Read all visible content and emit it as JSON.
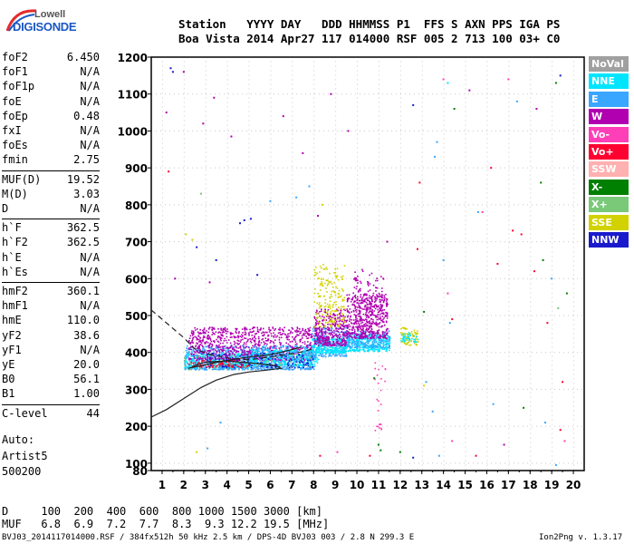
{
  "logo": {
    "line1": "Lowell",
    "line2": "DIGISONDE"
  },
  "header": {
    "labels_line": "Station   YYYY DAY   DDD HHMMSS P1  FFS S AXN PPS IGA PS",
    "values_line": "Boa Vista 2014 Apr27 117 014000 RSF 005 2 713 100 03+ C0"
  },
  "params_group1": [
    {
      "name": "foF2",
      "value": "6.450"
    },
    {
      "name": "foF1",
      "value": "N/A"
    },
    {
      "name": "foF1p",
      "value": "N/A"
    },
    {
      "name": "foE",
      "value": "N/A"
    },
    {
      "name": "foEp",
      "value": "0.48"
    },
    {
      "name": "fxI",
      "value": "N/A"
    },
    {
      "name": "foEs",
      "value": "N/A"
    },
    {
      "name": "fmin",
      "value": "2.75"
    }
  ],
  "params_group2": [
    {
      "name": "MUF(D)",
      "value": "19.52"
    },
    {
      "name": "M(D)",
      "value": "3.03"
    },
    {
      "name": "D",
      "value": "N/A"
    }
  ],
  "params_group3": [
    {
      "name": "h`F",
      "value": "362.5"
    },
    {
      "name": "h`F2",
      "value": "362.5"
    },
    {
      "name": "h`E",
      "value": "N/A"
    },
    {
      "name": "h`Es",
      "value": "N/A"
    }
  ],
  "params_group4": [
    {
      "name": "hmF2",
      "value": "360.1"
    },
    {
      "name": "hmF1",
      "value": "N/A"
    },
    {
      "name": "hmE",
      "value": "110.0"
    },
    {
      "name": "yF2",
      "value": "38.6"
    },
    {
      "name": "yF1",
      "value": "N/A"
    },
    {
      "name": "yE",
      "value": "20.0"
    },
    {
      "name": "B0",
      "value": "56.1"
    },
    {
      "name": "B1",
      "value": "1.00"
    }
  ],
  "params_group5": [
    {
      "name": "C-level",
      "value": "44"
    }
  ],
  "autoscale": {
    "line1": "Auto:",
    "line2": "Artist5",
    "line3": "500200"
  },
  "legend": [
    {
      "label": "NoVal",
      "color": "#a0a0a0"
    },
    {
      "label": "NNE",
      "color": "#00e5ff"
    },
    {
      "label": "E",
      "color": "#3aa6ff"
    },
    {
      "label": "W",
      "color": "#b000b0"
    },
    {
      "label": "Vo-",
      "color": "#ff3fb8"
    },
    {
      "label": "Vo+",
      "color": "#ff0030"
    },
    {
      "label": "SSW",
      "color": "#ffb0b0"
    },
    {
      "label": "X-",
      "color": "#008000"
    },
    {
      "label": "X+",
      "color": "#79c979"
    },
    {
      "label": "SSE",
      "color": "#d2d200"
    },
    {
      "label": "NNW",
      "color": "#1a1acc"
    }
  ],
  "muf_table": {
    "d_line": "D     100  200  400  600  800 1000 1500 3000 [km]",
    "muf_line": "MUF   6.8  6.9  7.2  7.7  8.3  9.3 12.2 19.5 [MHz]"
  },
  "footer": {
    "left": "BVJ03_2014117014000.RSF / 384fx512h 50 kHz 2.5 km / DPS-4D BVJ03 003 / 2.8 N 299.3 E",
    "right": "Ion2Png v. 1.3.17"
  },
  "chart_data": {
    "type": "scatter",
    "xlim": [
      0.5,
      20.5
    ],
    "ylim": [
      80,
      1200
    ],
    "xticks": [
      1,
      2,
      3,
      4,
      5,
      6,
      7,
      8,
      9,
      10,
      11,
      12,
      13,
      14,
      15,
      16,
      17,
      18,
      19,
      20
    ],
    "yticks": [
      80,
      100,
      200,
      300,
      400,
      500,
      600,
      700,
      800,
      900,
      1000,
      1100,
      1200
    ],
    "grid": true,
    "legend_position": "right",
    "traces": [
      {
        "name": "solid",
        "style": "solid",
        "x": [
          0.5,
          1.2,
          2.0,
          2.8,
          3.5,
          4.3,
          5.0,
          5.8,
          6.5,
          6.2,
          5.0,
          4.0,
          3.0,
          2.4
        ],
        "y": [
          225,
          245,
          275,
          305,
          325,
          340,
          347,
          352,
          357,
          365,
          372,
          377,
          374,
          362
        ]
      },
      {
        "name": "dashed",
        "style": "dashed",
        "x": [
          0.5,
          1.2,
          2.0,
          2.5,
          3.2,
          4.0,
          5.0,
          6.0,
          6.8,
          7.5,
          8.0
        ],
        "y": [
          515,
          480,
          440,
          410,
          395,
          385,
          380,
          388,
          395,
          402,
          410
        ]
      },
      {
        "name": "dark",
        "style": "solid",
        "x": [
          2.2,
          2.8,
          3.4,
          4.0,
          4.6,
          5.2,
          5.8,
          6.4,
          7.0,
          7.4
        ],
        "y": [
          357,
          364,
          372,
          378,
          384,
          389,
          392,
          399,
          408,
          414
        ]
      }
    ],
    "clusters": [
      {
        "x": [
          2.0,
          5.0
        ],
        "y": [
          355,
          420
        ],
        "color": "#3aa6ff",
        "n": 520
      },
      {
        "x": [
          2.0,
          5.0
        ],
        "y": [
          360,
          400
        ],
        "color": "#00e5ff",
        "n": 260
      },
      {
        "x": [
          2.2,
          8.0
        ],
        "y": [
          380,
          470
        ],
        "color": "#b000b0",
        "n": 900
      },
      {
        "x": [
          5.0,
          8.0
        ],
        "y": [
          355,
          420
        ],
        "color": "#3aa6ff",
        "n": 520
      },
      {
        "x": [
          5.0,
          8.2
        ],
        "y": [
          365,
          410
        ],
        "color": "#00e5ff",
        "n": 300
      },
      {
        "x": [
          3.0,
          8.0
        ],
        "y": [
          360,
          400
        ],
        "color": "#1a1acc",
        "n": 160
      },
      {
        "x": [
          7.9,
          9.5
        ],
        "y": [
          390,
          470
        ],
        "color": "#3aa6ff",
        "n": 300
      },
      {
        "x": [
          7.9,
          9.5
        ],
        "y": [
          400,
          440
        ],
        "color": "#00e5ff",
        "n": 240
      },
      {
        "x": [
          8.0,
          9.5
        ],
        "y": [
          420,
          520
        ],
        "color": "#b000b0",
        "n": 360
      },
      {
        "x": [
          8.0,
          9.4
        ],
        "y": [
          470,
          640
        ],
        "color": "#d2d200",
        "n": 190
      },
      {
        "x": [
          9.5,
          11.5
        ],
        "y": [
          405,
          450
        ],
        "color": "#00e5ff",
        "n": 330
      },
      {
        "x": [
          9.5,
          11.5
        ],
        "y": [
          415,
          460
        ],
        "color": "#3aa6ff",
        "n": 200
      },
      {
        "x": [
          9.5,
          11.4
        ],
        "y": [
          440,
          560
        ],
        "color": "#b000b0",
        "n": 480
      },
      {
        "x": [
          9.8,
          11.2
        ],
        "y": [
          470,
          630
        ],
        "color": "#b000b0",
        "n": 130
      },
      {
        "x": [
          12.0,
          12.8
        ],
        "y": [
          420,
          470
        ],
        "color": "#d2d200",
        "n": 80
      },
      {
        "x": [
          12.0,
          12.8
        ],
        "y": [
          430,
          455
        ],
        "color": "#00e5ff",
        "n": 40
      },
      {
        "x": [
          2.2,
          5.0
        ],
        "y": [
          362,
          380
        ],
        "color": "#ff0030",
        "n": 90
      },
      {
        "x": [
          2.0,
          8.0
        ],
        "y": [
          355,
          400
        ],
        "color": "#79c979",
        "n": 50
      },
      {
        "x": [
          10.8,
          11.3
        ],
        "y": [
          380,
          180
        ],
        "color": "#ff3fb8",
        "n": 25
      }
    ],
    "scattered_points": [
      {
        "x": 1.4,
        "y": 1170,
        "color": "#1a1acc"
      },
      {
        "x": 1.5,
        "y": 1160,
        "color": "#1a1acc"
      },
      {
        "x": 1.2,
        "y": 1050,
        "color": "#b000b0"
      },
      {
        "x": 2.0,
        "y": 1160,
        "color": "#b000b0"
      },
      {
        "x": 2.9,
        "y": 1020,
        "color": "#b000b0"
      },
      {
        "x": 3.4,
        "y": 1090,
        "color": "#b000b0"
      },
      {
        "x": 4.2,
        "y": 985,
        "color": "#b000b0"
      },
      {
        "x": 6.6,
        "y": 1040,
        "color": "#b000b0"
      },
      {
        "x": 7.5,
        "y": 940,
        "color": "#b000b0"
      },
      {
        "x": 8.8,
        "y": 1100,
        "color": "#b000b0"
      },
      {
        "x": 1.3,
        "y": 890,
        "color": "#ff0030"
      },
      {
        "x": 1.6,
        "y": 600,
        "color": "#b000b0"
      },
      {
        "x": 2.1,
        "y": 720,
        "color": "#d2d200"
      },
      {
        "x": 2.4,
        "y": 705,
        "color": "#d2d200"
      },
      {
        "x": 2.6,
        "y": 685,
        "color": "#1a1acc"
      },
      {
        "x": 2.8,
        "y": 830,
        "color": "#79c979"
      },
      {
        "x": 3.5,
        "y": 650,
        "color": "#1a1acc"
      },
      {
        "x": 3.2,
        "y": 590,
        "color": "#b000b0"
      },
      {
        "x": 7.8,
        "y": 850,
        "color": "#3aa6ff"
      },
      {
        "x": 7.2,
        "y": 820,
        "color": "#3aa6ff"
      },
      {
        "x": 6.0,
        "y": 810,
        "color": "#3aa6ff"
      },
      {
        "x": 8.4,
        "y": 800,
        "color": "#d2d200"
      },
      {
        "x": 8.2,
        "y": 770,
        "color": "#b000b0"
      },
      {
        "x": 9.6,
        "y": 1000,
        "color": "#b000b0"
      },
      {
        "x": 11.4,
        "y": 700,
        "color": "#b000b0"
      },
      {
        "x": 12.6,
        "y": 1070,
        "color": "#1a1acc"
      },
      {
        "x": 12.9,
        "y": 860,
        "color": "#ff0030"
      },
      {
        "x": 12.8,
        "y": 680,
        "color": "#ff0030"
      },
      {
        "x": 13.1,
        "y": 510,
        "color": "#008000"
      },
      {
        "x": 13.6,
        "y": 930,
        "color": "#3aa6ff"
      },
      {
        "x": 13.7,
        "y": 970,
        "color": "#3aa6ff"
      },
      {
        "x": 14.0,
        "y": 1140,
        "color": "#ff3fb8"
      },
      {
        "x": 14.2,
        "y": 1130,
        "color": "#00e5ff"
      },
      {
        "x": 14.5,
        "y": 1060,
        "color": "#008000"
      },
      {
        "x": 14.2,
        "y": 560,
        "color": "#ff3fb8"
      },
      {
        "x": 14.4,
        "y": 490,
        "color": "#ff0030"
      },
      {
        "x": 14.0,
        "y": 650,
        "color": "#3aa6ff"
      },
      {
        "x": 15.2,
        "y": 1110,
        "color": "#b000b0"
      },
      {
        "x": 16.2,
        "y": 900,
        "color": "#ff0030"
      },
      {
        "x": 15.8,
        "y": 780,
        "color": "#ff3fb8"
      },
      {
        "x": 16.5,
        "y": 640,
        "color": "#ff0030"
      },
      {
        "x": 17.0,
        "y": 1140,
        "color": "#ff3fb8"
      },
      {
        "x": 17.4,
        "y": 1080,
        "color": "#3aa6ff"
      },
      {
        "x": 17.2,
        "y": 730,
        "color": "#ff0030"
      },
      {
        "x": 17.6,
        "y": 720,
        "color": "#ff0030"
      },
      {
        "x": 18.3,
        "y": 1060,
        "color": "#b000b0"
      },
      {
        "x": 18.5,
        "y": 860,
        "color": "#008000"
      },
      {
        "x": 18.2,
        "y": 620,
        "color": "#ff0030"
      },
      {
        "x": 18.8,
        "y": 480,
        "color": "#ff0030"
      },
      {
        "x": 19.2,
        "y": 1130,
        "color": "#008000"
      },
      {
        "x": 19.4,
        "y": 1150,
        "color": "#1a1acc"
      },
      {
        "x": 19.0,
        "y": 600,
        "color": "#3aa6ff"
      },
      {
        "x": 19.5,
        "y": 320,
        "color": "#ff0030"
      },
      {
        "x": 19.4,
        "y": 190,
        "color": "#ff0030"
      },
      {
        "x": 19.6,
        "y": 160,
        "color": "#ff3fb8"
      },
      {
        "x": 19.2,
        "y": 95,
        "color": "#3aa6ff"
      },
      {
        "x": 13.2,
        "y": 320,
        "color": "#3aa6ff"
      },
      {
        "x": 13.5,
        "y": 240,
        "color": "#3aa6ff"
      },
      {
        "x": 13.1,
        "y": 310,
        "color": "#d2d200"
      },
      {
        "x": 13.8,
        "y": 120,
        "color": "#3aa6ff"
      },
      {
        "x": 14.4,
        "y": 160,
        "color": "#ff3fb8"
      },
      {
        "x": 15.5,
        "y": 120,
        "color": "#ff0030"
      },
      {
        "x": 16.3,
        "y": 260,
        "color": "#3aa6ff"
      },
      {
        "x": 16.8,
        "y": 150,
        "color": "#b000b0"
      },
      {
        "x": 17.7,
        "y": 250,
        "color": "#008000"
      },
      {
        "x": 18.7,
        "y": 210,
        "color": "#3aa6ff"
      },
      {
        "x": 11.0,
        "y": 150,
        "color": "#008000"
      },
      {
        "x": 11.1,
        "y": 135,
        "color": "#008000"
      },
      {
        "x": 12.0,
        "y": 130,
        "color": "#008000"
      },
      {
        "x": 12.6,
        "y": 115,
        "color": "#1a1acc"
      },
      {
        "x": 3.7,
        "y": 210,
        "color": "#3aa6ff"
      },
      {
        "x": 3.1,
        "y": 140,
        "color": "#3aa6ff"
      },
      {
        "x": 2.6,
        "y": 130,
        "color": "#d2d200"
      },
      {
        "x": 8.3,
        "y": 120,
        "color": "#ff0030"
      },
      {
        "x": 9.1,
        "y": 130,
        "color": "#ff3fb8"
      },
      {
        "x": 10.6,
        "y": 120,
        "color": "#ff0030"
      },
      {
        "x": 14.3,
        "y": 480,
        "color": "#3aa6ff"
      },
      {
        "x": 15.6,
        "y": 780,
        "color": "#3aa6ff"
      },
      {
        "x": 18.6,
        "y": 650,
        "color": "#008000"
      },
      {
        "x": 19.7,
        "y": 560,
        "color": "#008000"
      },
      {
        "x": 19.3,
        "y": 520,
        "color": "#79c979"
      },
      {
        "x": 5.4,
        "y": 610,
        "color": "#1a1acc"
      },
      {
        "x": 4.6,
        "y": 750,
        "color": "#1a1acc"
      },
      {
        "x": 4.8,
        "y": 758,
        "color": "#1a1acc"
      },
      {
        "x": 5.1,
        "y": 762,
        "color": "#1a1acc"
      },
      {
        "x": 10.8,
        "y": 330,
        "color": "#008000"
      }
    ]
  }
}
